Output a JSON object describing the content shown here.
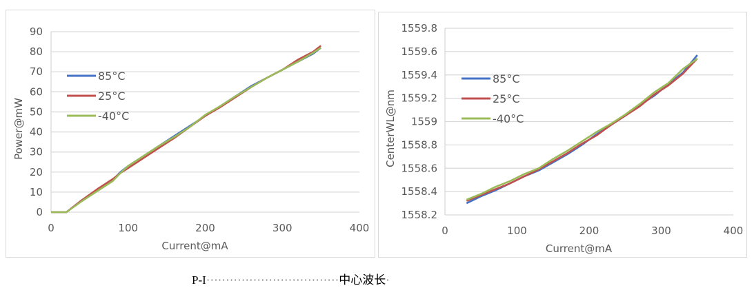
{
  "chart_data": [
    {
      "type": "line",
      "title": "",
      "xlabel": "Current@mA",
      "ylabel": "Power@mW",
      "xlim": [
        0,
        400
      ],
      "ylim": [
        0,
        90
      ],
      "xticks": [
        "0",
        "100",
        "200",
        "300",
        "400"
      ],
      "yticks": [
        "0",
        "10",
        "20",
        "30",
        "40",
        "50",
        "60",
        "70",
        "80",
        "90"
      ],
      "grid": "horizontal",
      "legend_position": "upper-left-inside",
      "x": [
        0,
        20,
        40,
        60,
        80,
        90,
        100,
        120,
        140,
        160,
        180,
        200,
        220,
        240,
        260,
        280,
        300,
        320,
        340,
        350
      ],
      "series": [
        {
          "name": "85°C",
          "color": "#4472c4",
          "values": [
            0,
            0,
            6,
            11,
            16,
            20,
            23,
            28,
            33,
            38,
            43,
            48,
            53,
            58,
            63,
            67,
            71,
            75,
            79,
            82
          ]
        },
        {
          "name": "25°C",
          "color": "#c0504d",
          "values": [
            0,
            0,
            6,
            11.5,
            16.5,
            19.5,
            22,
            27,
            32,
            37,
            42.5,
            48,
            52.5,
            57.5,
            62.5,
            67,
            71,
            76,
            80,
            83
          ]
        },
        {
          "name": "-40°C",
          "color": "#9bbb59",
          "values": [
            0,
            0,
            5.5,
            10.5,
            15.5,
            19.5,
            23,
            28,
            33,
            37.5,
            42.5,
            48.5,
            53,
            58,
            62.5,
            67,
            71,
            75,
            79.5,
            82
          ]
        }
      ]
    },
    {
      "type": "line",
      "title": "",
      "xlabel": "Current@mA",
      "ylabel": "CenterWL@nm",
      "xlim": [
        0,
        400
      ],
      "ylim": [
        1558.2,
        1559.8
      ],
      "xticks": [
        "0",
        "100",
        "200",
        "300",
        "400"
      ],
      "yticks": [
        "1558.2",
        "1558.4",
        "1558.6",
        "1558.8",
        "1559",
        "1559.2",
        "1559.4",
        "1559.6",
        "1559.8"
      ],
      "grid": "horizontal",
      "legend_position": "upper-left-inside",
      "x": [
        30,
        50,
        70,
        90,
        110,
        130,
        150,
        170,
        190,
        210,
        230,
        250,
        270,
        290,
        310,
        330,
        350
      ],
      "series": [
        {
          "name": "85°C",
          "color": "#4472c4",
          "values": [
            1558.3,
            1558.36,
            1558.41,
            1558.47,
            1558.53,
            1558.58,
            1558.65,
            1558.72,
            1558.8,
            1558.89,
            1558.97,
            1559.05,
            1559.14,
            1559.22,
            1559.32,
            1559.42,
            1559.57
          ]
        },
        {
          "name": "25°C",
          "color": "#c0504d",
          "values": [
            1558.32,
            1558.37,
            1558.42,
            1558.47,
            1558.53,
            1558.59,
            1558.66,
            1558.73,
            1558.81,
            1558.88,
            1558.97,
            1559.05,
            1559.13,
            1559.23,
            1559.31,
            1559.41,
            1559.54
          ]
        },
        {
          "name": "-40°C",
          "color": "#9bbb59",
          "values": [
            1558.33,
            1558.38,
            1558.44,
            1558.49,
            1558.55,
            1558.6,
            1558.68,
            1558.75,
            1558.83,
            1558.91,
            1558.98,
            1559.06,
            1559.15,
            1559.25,
            1559.33,
            1559.45,
            1559.54
          ]
        }
      ]
    }
  ],
  "caption": {
    "left": "P-I",
    "dots": "··································",
    "right": "中心波长",
    "end_mark": "·"
  }
}
